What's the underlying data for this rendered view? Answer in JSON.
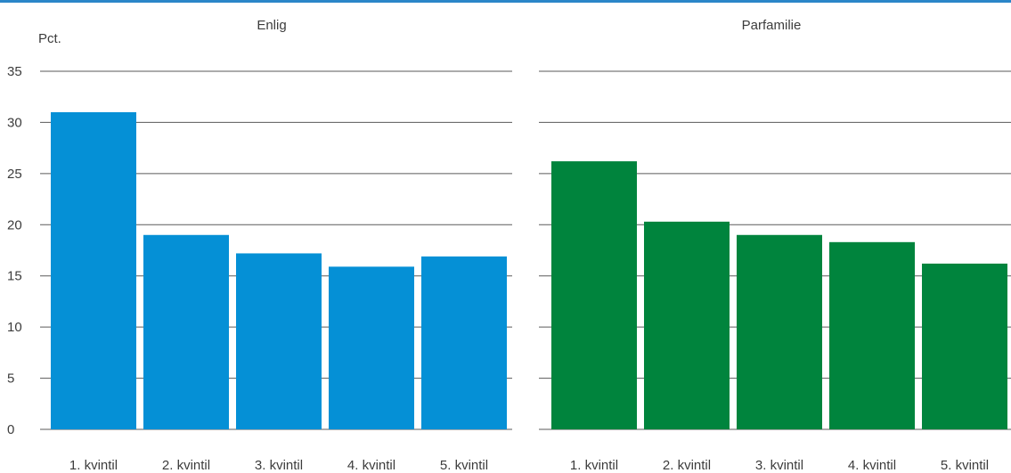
{
  "chart_data": [
    {
      "type": "bar",
      "title": "Enlig",
      "ylabel": "Pct.",
      "xlabel": "",
      "categories": [
        "1. kvintil",
        "2. kvintil",
        "3. kvintil",
        "4. kvintil",
        "5. kvintil"
      ],
      "values": [
        31.0,
        19.0,
        17.2,
        15.9,
        16.9
      ],
      "ylim": [
        0,
        35
      ],
      "yticks": [
        "0",
        "5",
        "10",
        "15",
        "20",
        "25",
        "30",
        "35"
      ],
      "color": "#0590d6",
      "grid": true
    },
    {
      "type": "bar",
      "title": "Parfamilie",
      "ylabel": "",
      "xlabel": "",
      "categories": [
        "1. kvintil",
        "2. kvintil",
        "3. kvintil",
        "4. kvintil",
        "5. kvintil"
      ],
      "values": [
        26.2,
        20.3,
        19.0,
        18.3,
        16.2
      ],
      "ylim": [
        0,
        35
      ],
      "color": "#00843d",
      "grid": true
    }
  ],
  "colors": {
    "top_rule": "#2b86c8",
    "grid": "#5a5a5a"
  }
}
